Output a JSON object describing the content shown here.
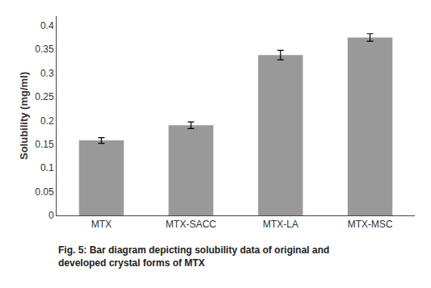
{
  "chart_data": {
    "type": "bar",
    "categories": [
      "MTX",
      "MTX-SACC",
      "MTX-LA",
      "MTX-MSC"
    ],
    "values": [
      0.158,
      0.19,
      0.338,
      0.375
    ],
    "errors": [
      0.006,
      0.007,
      0.01,
      0.008
    ],
    "color": "#999999",
    "ylabel": "Solubility (mg/ml)",
    "ylim": [
      0,
      0.42
    ],
    "yticks": [
      0,
      0.05,
      0.1,
      0.15,
      0.2,
      0.25,
      0.3,
      0.35,
      0.4
    ],
    "annotations": [
      "Fig. 5: Bar diagram depicting solubility data of original and",
      "developed crystal forms of MTX"
    ],
    "grid": false
  }
}
